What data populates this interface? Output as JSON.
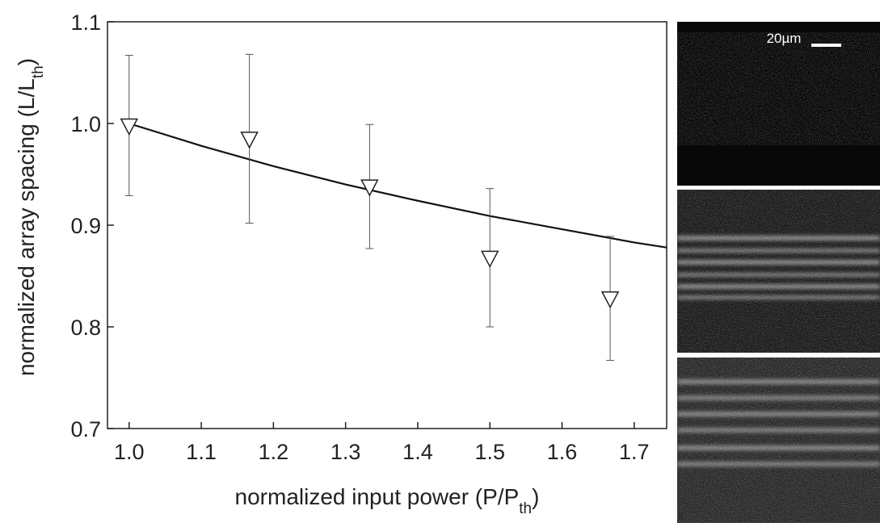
{
  "chart_data": {
    "type": "scatter",
    "xlabel": [
      "normalized input power (P/P",
      "th",
      ")"
    ],
    "ylabel": [
      "normalized array spacing (L/L",
      "th",
      ")"
    ],
    "xlim": [
      0.97,
      1.745
    ],
    "ylim": [
      0.7,
      1.1
    ],
    "xticks": [
      {
        "value": 1,
        "label": "1.0"
      },
      1.1,
      1.2,
      1.3,
      1.4,
      1.5,
      1.6,
      1.7
    ],
    "yticks": [
      0.7,
      0.8,
      0.9,
      {
        "value": 1,
        "label": "1.0"
      },
      1.1
    ],
    "series": [
      {
        "x": [
          1.0,
          1.1667,
          1.3333,
          1.5,
          1.6667
        ],
        "values": [
          0.998,
          0.985,
          0.938,
          0.868,
          0.828
        ],
        "errors": [
          0.069,
          0.083,
          0.061,
          0.068,
          0.061
        ],
        "color": "#222222",
        "marker": "triangle-down"
      }
    ],
    "fit": {
      "x": [
        1.0,
        1.1,
        1.2,
        1.3,
        1.4,
        1.5,
        1.6,
        1.7,
        1.745
      ],
      "values": [
        1.0,
        0.978,
        0.958,
        0.94,
        0.924,
        0.909,
        0.896,
        0.883,
        0.878
      ],
      "color": "#111111"
    },
    "image_panel": {
      "scale_label": "20µm"
    }
  }
}
